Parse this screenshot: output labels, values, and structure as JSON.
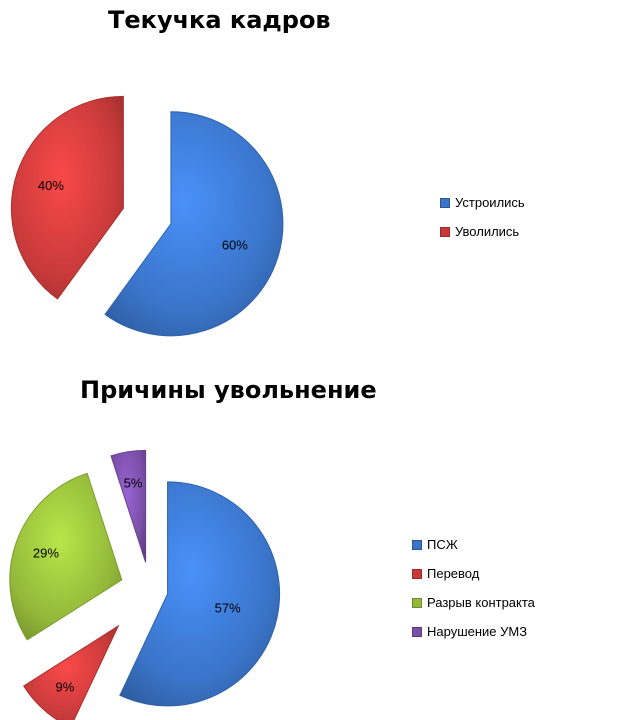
{
  "chart_data": [
    {
      "type": "pie",
      "title": "Текучка кадров",
      "slices": [
        {
          "label": "Устроились",
          "value": 60,
          "display": "60%",
          "color": "#3a74c8"
        },
        {
          "label": "Уволились",
          "value": 40,
          "display": "40%",
          "color": "#c83a3a"
        }
      ],
      "legend_position": "right"
    },
    {
      "type": "pie",
      "title": "Причины увольнение",
      "slices": [
        {
          "label": "ПСЖ",
          "value": 57,
          "display": "57%",
          "color": "#3a74c8"
        },
        {
          "label": "Перевод",
          "value": 9,
          "display": "9%",
          "color": "#c83a3a"
        },
        {
          "label": "Разрыв контракта",
          "value": 29,
          "display": "29%",
          "color": "#93b83a"
        },
        {
          "label": "Нарушение УМЗ",
          "value": 5,
          "display": "5%",
          "color": "#7a4fa8"
        }
      ],
      "legend_position": "right"
    }
  ]
}
